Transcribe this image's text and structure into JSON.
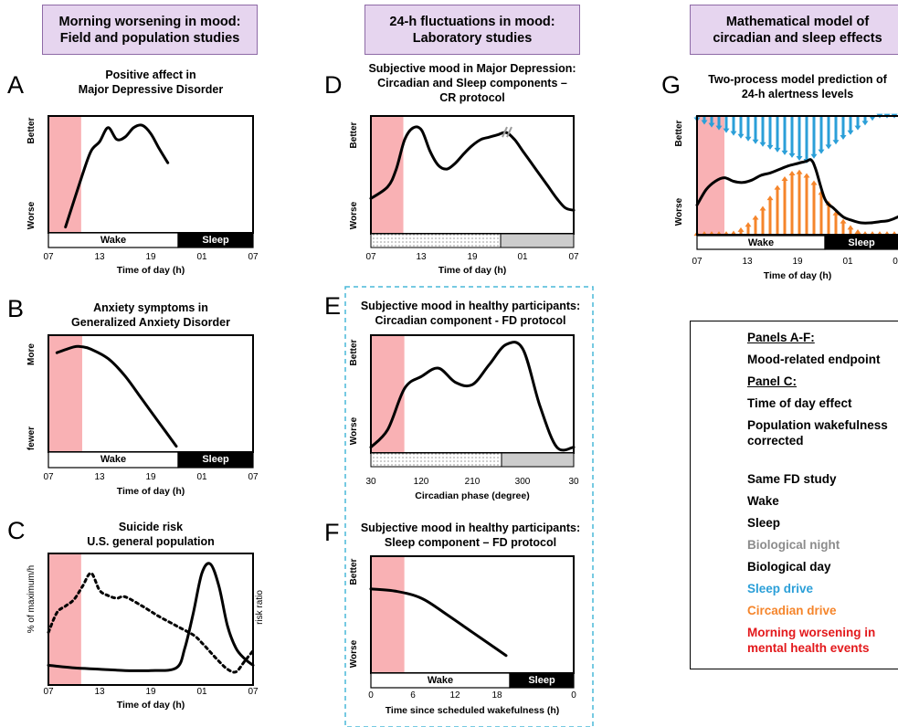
{
  "headers": {
    "col1": [
      "Morning worsening in mood:",
      "Field and population studies"
    ],
    "col2": [
      "24-h fluctuations in mood:",
      "Laboratory studies"
    ],
    "col3": [
      "Mathematical model of",
      "circadian and sleep effects"
    ]
  },
  "panels": {
    "A": {
      "letter": "A",
      "title": [
        "Positive affect in",
        "Major Depressive Disorder"
      ],
      "y_top": "Better",
      "y_bottom": "Worse",
      "xlabel": "Time of day (h)",
      "ticks": [
        "07",
        "13",
        "19",
        "01",
        "07"
      ],
      "wake": "Wake",
      "sleep": "Sleep"
    },
    "B": {
      "letter": "B",
      "title": [
        "Anxiety symptoms in",
        "Generalized Anxiety Disorder"
      ],
      "y_top": "More",
      "y_bottom": "fewer",
      "xlabel": "Time of day (h)",
      "ticks": [
        "07",
        "13",
        "19",
        "01",
        "07"
      ],
      "wake": "Wake",
      "sleep": "Sleep"
    },
    "C": {
      "letter": "C",
      "title": [
        "Suicide risk",
        "U.S. general population"
      ],
      "y_left": "% of maximum/h",
      "y_right": "risk ratio",
      "xlabel": "Time of day (h)",
      "ticks": [
        "07",
        "13",
        "19",
        "01",
        "07"
      ]
    },
    "D": {
      "letter": "D",
      "title": [
        "Subjective mood in Major Depression:",
        "Circadian and Sleep components –",
        "CR protocol"
      ],
      "y_top": "Better",
      "y_bottom": "Worse",
      "xlabel": "Time of day (h)",
      "ticks": [
        "07",
        "13",
        "19",
        "01",
        "07"
      ]
    },
    "E": {
      "letter": "E",
      "title": [
        "Subjective mood in healthy participants:",
        "Circadian component - FD protocol"
      ],
      "y_top": "Better",
      "y_bottom": "Worse",
      "xlabel": "Circadian phase (degree)",
      "ticks": [
        "30",
        "120",
        "210",
        "300",
        "30"
      ]
    },
    "F": {
      "letter": "F",
      "title": [
        "Subjective mood in healthy participants:",
        "Sleep component – FD protocol"
      ],
      "y_top": "Better",
      "y_bottom": "Worse",
      "xlabel": "Time since scheduled wakefulness (h)",
      "ticks": [
        "0",
        "6",
        "12",
        "18",
        "0"
      ],
      "wake": "Wake",
      "sleep": "Sleep"
    },
    "G": {
      "letter": "G",
      "title": [
        "Two-process model prediction of",
        "24-h alertness levels"
      ],
      "y_top": "Better",
      "y_bottom": "Worse",
      "xlabel": "Time of day (h)",
      "ticks": [
        "07",
        "13",
        "19",
        "01",
        "0"
      ],
      "wake": "Wake",
      "sleep": "Sleep"
    }
  },
  "legend": {
    "panels_af": "Panels A-F:",
    "mood_endpoint": "Mood-related endpoint",
    "panel_c": "Panel C:",
    "tod_effect": "Time of day effect",
    "pop_wake": [
      "Population wakefulness",
      "corrected"
    ],
    "same_fd": "Same FD study",
    "wake": "Wake",
    "sleep": "Sleep",
    "bio_night": "Biological night",
    "bio_day": "Biological day",
    "sleep_drive": "Sleep drive",
    "circ_drive": "Circadian drive",
    "morning": [
      "Morning worsening in",
      "mental health events"
    ]
  },
  "colors": {
    "header_bg": "#e6d5ef",
    "header_border": "#8e6aa6",
    "morning_shade": "#f9b1b4",
    "sleep_drive": "#2b9fd8",
    "circadian_drive": "#f5852b",
    "bio_night": "#cccccc",
    "fd_box": "#49b9d8",
    "morning_text": "#e3191c"
  },
  "chart_data": [
    {
      "panel": "A",
      "type": "line",
      "x": [
        9,
        11,
        12,
        13,
        14,
        15,
        16,
        17,
        18,
        19,
        20,
        21
      ],
      "values": [
        0.05,
        0.5,
        0.7,
        0.78,
        0.9,
        0.8,
        0.82,
        0.9,
        0.92,
        0.85,
        0.72,
        0.6
      ],
      "xlim": [
        7,
        31
      ],
      "ylim": [
        0,
        1
      ]
    },
    {
      "panel": "B",
      "type": "line",
      "x": [
        8,
        10,
        11,
        12,
        14,
        16,
        18,
        20,
        22
      ],
      "values": [
        0.85,
        0.9,
        0.9,
        0.88,
        0.8,
        0.65,
        0.45,
        0.25,
        0.05
      ],
      "xlim": [
        7,
        31
      ],
      "ylim": [
        0,
        1
      ]
    },
    {
      "panel": "C",
      "type": "line",
      "xlim": [
        7,
        31
      ],
      "series": [
        {
          "x": [
            7,
            8,
            9,
            10,
            11,
            12,
            13,
            14,
            15,
            16,
            18,
            20,
            22,
            24,
            25,
            26,
            27,
            28,
            29,
            30,
            31
          ],
          "values": [
            0.4,
            0.55,
            0.6,
            0.65,
            0.75,
            0.85,
            0.72,
            0.68,
            0.66,
            0.67,
            0.6,
            0.52,
            0.45,
            0.38,
            0.32,
            0.25,
            0.18,
            0.12,
            0.1,
            0.18,
            0.26
          ]
        },
        {
          "x": [
            7,
            10,
            13,
            16,
            19,
            22,
            23,
            24,
            25,
            26,
            27,
            28,
            29,
            30,
            31
          ],
          "values": [
            0.15,
            0.13,
            0.12,
            0.11,
            0.11,
            0.13,
            0.28,
            0.55,
            0.85,
            0.92,
            0.75,
            0.45,
            0.28,
            0.2,
            0.15
          ]
        }
      ]
    },
    {
      "panel": "D",
      "type": "line",
      "x": [
        7,
        9,
        10,
        11,
        12,
        13,
        14,
        15,
        16,
        17,
        18,
        19,
        20,
        21,
        22,
        23,
        24,
        25,
        26,
        27,
        28,
        29,
        30,
        31
      ],
      "values": [
        0.3,
        0.4,
        0.55,
        0.8,
        0.9,
        0.88,
        0.7,
        0.58,
        0.55,
        0.6,
        0.68,
        0.75,
        0.8,
        0.82,
        0.84,
        0.86,
        0.8,
        0.7,
        0.6,
        0.5,
        0.4,
        0.3,
        0.22,
        0.2
      ],
      "xlim": [
        7,
        31
      ],
      "ylim": [
        0,
        1
      ]
    },
    {
      "panel": "E",
      "type": "line",
      "x": [
        30,
        60,
        90,
        120,
        150,
        180,
        210,
        240,
        270,
        300,
        330,
        360,
        390
      ],
      "values": [
        0.05,
        0.2,
        0.55,
        0.65,
        0.72,
        0.6,
        0.58,
        0.75,
        0.92,
        0.88,
        0.4,
        0.05,
        0.05
      ],
      "xlim": [
        30,
        390
      ],
      "ylim": [
        0,
        1
      ]
    },
    {
      "panel": "F",
      "type": "line",
      "x": [
        0,
        3,
        6,
        9,
        12,
        15,
        16
      ],
      "values": [
        0.72,
        0.7,
        0.64,
        0.5,
        0.35,
        0.2,
        0.15
      ],
      "xlim": [
        0,
        24
      ],
      "ylim": [
        0,
        1
      ]
    },
    {
      "panel": "G",
      "type": "line",
      "x": [
        7,
        8,
        9,
        10,
        11,
        12,
        13,
        14,
        15,
        16,
        17,
        18,
        19,
        19.5,
        20,
        21,
        22,
        23,
        24,
        25,
        26,
        27,
        28,
        29,
        30
      ],
      "values": [
        0.25,
        0.38,
        0.45,
        0.48,
        0.45,
        0.44,
        0.46,
        0.5,
        0.52,
        0.55,
        0.58,
        0.6,
        0.62,
        0.63,
        0.55,
        0.3,
        0.22,
        0.15,
        0.12,
        0.1,
        0.1,
        0.11,
        0.12,
        0.15,
        0.2
      ],
      "xlim": [
        7,
        31
      ],
      "ylim": [
        0,
        1
      ]
    }
  ]
}
